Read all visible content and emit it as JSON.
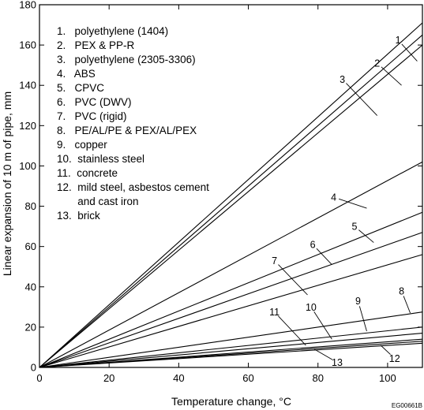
{
  "chart_data": {
    "type": "line",
    "title": "",
    "xlabel": "Temperature change, °C",
    "ylabel": "Linear expansion of 10 m of pipe, mm",
    "xlim": [
      0,
      110
    ],
    "ylim": [
      0,
      180
    ],
    "x_ticks": [
      "0",
      "20",
      "40",
      "60",
      "80",
      "100"
    ],
    "y_ticks": [
      "0",
      "20",
      "40",
      "60",
      "80",
      "100",
      "120",
      "140",
      "160",
      "180"
    ],
    "grid": false,
    "legend_position": "top-left",
    "legend": [
      "1.   polyethylene (1404)",
      "2.   PEX & PP-R",
      "3.   polyethylene (2305-3306)",
      "4.   ABS",
      "5.   CPVC",
      "6.   PVC (DWV)",
      "7.   PVC (rigid)",
      "8.   PE/AL/PE & PEX/AL/PEX",
      "9.   copper",
      "10.  stainless steel",
      "11.  concrete",
      "12.  mild steel, asbestos cement",
      "       and cast iron",
      "13.  brick"
    ],
    "series": [
      {
        "name": "1",
        "x": [
          0,
          110
        ],
        "y": [
          0,
          171
        ]
      },
      {
        "name": "2",
        "x": [
          0,
          110
        ],
        "y": [
          0,
          165
        ]
      },
      {
        "name": "3",
        "x": [
          0,
          110
        ],
        "y": [
          0,
          160
        ]
      },
      {
        "name": "4",
        "x": [
          0,
          110
        ],
        "y": [
          0,
          102
        ]
      },
      {
        "name": "5",
        "x": [
          0,
          110
        ],
        "y": [
          0,
          77
        ]
      },
      {
        "name": "6",
        "x": [
          0,
          110
        ],
        "y": [
          0,
          67
        ]
      },
      {
        "name": "7",
        "x": [
          0,
          110
        ],
        "y": [
          0,
          56
        ]
      },
      {
        "name": "8",
        "x": [
          0,
          110
        ],
        "y": [
          0,
          27.5
        ]
      },
      {
        "name": "9",
        "x": [
          0,
          110
        ],
        "y": [
          0,
          20
        ]
      },
      {
        "name": "10",
        "x": [
          0,
          110
        ],
        "y": [
          0,
          17
        ]
      },
      {
        "name": "11",
        "x": [
          0,
          110
        ],
        "y": [
          0,
          14
        ]
      },
      {
        "name": "12",
        "x": [
          0,
          110
        ],
        "y": [
          0,
          13
        ]
      },
      {
        "name": "13",
        "x": [
          0,
          110
        ],
        "y": [
          0,
          12
        ]
      }
    ],
    "line_labels": [
      {
        "text": "1",
        "at": [
          103,
          162.5
        ],
        "leader_to": [
          108.5,
          152
        ]
      },
      {
        "text": "2",
        "at": [
          97,
          151
        ],
        "leader_to": [
          104,
          140
        ]
      },
      {
        "text": "3",
        "at": [
          87,
          143
        ],
        "leader_to": [
          97,
          125
        ]
      },
      {
        "text": "4",
        "at": [
          84.5,
          84.5
        ],
        "leader_to": [
          94,
          79
        ]
      },
      {
        "text": "5",
        "at": [
          90.5,
          70
        ],
        "leader_to": [
          96,
          62
        ]
      },
      {
        "text": "6",
        "at": [
          78.5,
          61
        ],
        "leader_to": [
          84,
          51
        ]
      },
      {
        "text": "7",
        "at": [
          67.5,
          53
        ],
        "leader_to": [
          77,
          36
        ]
      },
      {
        "text": "8",
        "at": [
          104,
          38
        ],
        "leader_to": [
          106.5,
          27
        ]
      },
      {
        "text": "9",
        "at": [
          91.5,
          33
        ],
        "leader_to": [
          94,
          18
        ]
      },
      {
        "text": "10",
        "at": [
          78,
          30
        ],
        "leader_to": [
          84,
          14
        ]
      },
      {
        "text": "11",
        "at": [
          67.5,
          27.5
        ],
        "leader_to": [
          76.5,
          11
        ]
      },
      {
        "text": "12",
        "at": [
          102,
          4.5
        ],
        "leader_to": [
          98,
          11
        ]
      },
      {
        "text": "13",
        "at": [
          85.5,
          2.5
        ],
        "leader_to": [
          79,
          9
        ]
      }
    ]
  },
  "figure_code": "EG00661B"
}
